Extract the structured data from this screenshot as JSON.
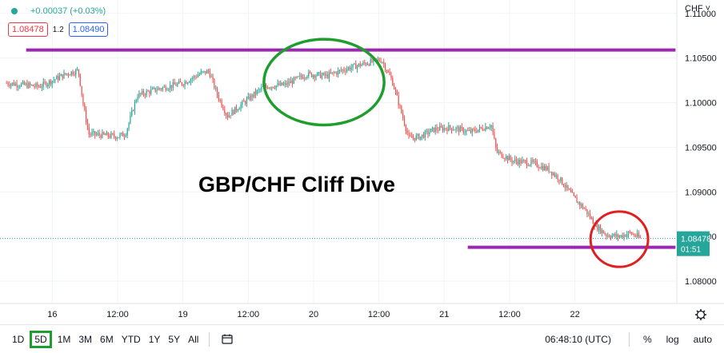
{
  "legend": {
    "change": "+0.00037 (+0.03%)",
    "sell_price": "1.08478",
    "spread": "1.2",
    "buy_price": "1.08490"
  },
  "currency_label": "CHF ˅",
  "annotation_title": "GBP/CHF Cliff Dive",
  "price_label": {
    "value": "1.08478",
    "countdown": "01:51"
  },
  "colors": {
    "up": "#26a69a",
    "down": "#ef5350",
    "resistance_line": "#9c27b0",
    "ellipse": "#1f9d2f",
    "circle": "#e02020",
    "price_badge": "#26a69a"
  },
  "chart_data": {
    "type": "candlestick",
    "ylim": [
      1.0775,
      1.1115
    ],
    "y_ticks": [
      1.08,
      1.085,
      1.09,
      1.095,
      1.1,
      1.105,
      1.11
    ],
    "y_tick_labels": [
      "1.08000",
      "1.08500",
      "1.09000",
      "1.09500",
      "1.10000",
      "1.10500",
      "1.11000"
    ],
    "x_ticks": [
      {
        "label": "16",
        "t": 0.0
      },
      {
        "label": "12:00",
        "t": 0.5
      },
      {
        "label": "19",
        "t": 1.0
      },
      {
        "label": "12:00",
        "t": 1.5
      },
      {
        "label": "20",
        "t": 2.0
      },
      {
        "label": "12:00",
        "t": 2.5
      },
      {
        "label": "21",
        "t": 3.0
      },
      {
        "label": "12:00",
        "t": 3.5
      },
      {
        "label": "22",
        "t": 4.0
      }
    ],
    "horizontal_lines": [
      {
        "name": "resistance",
        "y": 1.1059,
        "t_start": -0.2,
        "t_end": 4.77
      },
      {
        "name": "support",
        "y": 1.0838,
        "t_start": 3.18,
        "t_end": 4.77
      }
    ],
    "ellipse": {
      "t_center": 2.08,
      "y_center": 1.1023,
      "t_radius": 0.46,
      "y_radius": 0.0048
    },
    "circle": {
      "t_center": 4.34,
      "y_center": 1.0847,
      "t_radius": 0.22,
      "y_radius": 0.0031
    },
    "current_price": 1.08478,
    "path": [
      [
        -0.35,
        1.1022
      ],
      [
        -0.1,
        1.1018
      ],
      [
        0.12,
        1.1033
      ],
      [
        0.2,
        1.1036
      ],
      [
        0.24,
        1.0995
      ],
      [
        0.28,
        1.0965
      ],
      [
        0.5,
        1.0962
      ],
      [
        0.56,
        1.0965
      ],
      [
        0.65,
        1.1008
      ],
      [
        0.8,
        1.1015
      ],
      [
        1.0,
        1.1022
      ],
      [
        1.14,
        1.1033
      ],
      [
        1.2,
        1.1035
      ],
      [
        1.26,
        1.101
      ],
      [
        1.34,
        1.0985
      ],
      [
        1.55,
        1.101
      ],
      [
        1.62,
        1.1018
      ],
      [
        1.78,
        1.102
      ],
      [
        1.95,
        1.1032
      ],
      [
        2.1,
        1.103
      ],
      [
        2.25,
        1.1038
      ],
      [
        2.42,
        1.1045
      ],
      [
        2.52,
        1.1048
      ],
      [
        2.6,
        1.1025
      ],
      [
        2.66,
        1.0995
      ],
      [
        2.73,
        1.096
      ],
      [
        2.82,
        1.0962
      ],
      [
        2.92,
        1.097
      ],
      [
        3.05,
        1.0972
      ],
      [
        3.2,
        1.0967
      ],
      [
        3.3,
        1.0972
      ],
      [
        3.36,
        1.0975
      ],
      [
        3.4,
        1.0945
      ],
      [
        3.52,
        1.0935
      ],
      [
        3.68,
        1.0932
      ],
      [
        3.8,
        1.0925
      ],
      [
        3.88,
        1.0915
      ],
      [
        4.0,
        1.0892
      ],
      [
        4.08,
        1.088
      ],
      [
        4.16,
        1.0862
      ],
      [
        4.24,
        1.0852
      ],
      [
        4.34,
        1.085
      ],
      [
        4.42,
        1.0854
      ],
      [
        4.48,
        1.085
      ],
      [
        4.5,
        1.08478
      ]
    ]
  },
  "toolbar": {
    "timeframes": [
      "1D",
      "5D",
      "1M",
      "3M",
      "6M",
      "YTD",
      "1Y",
      "5Y",
      "All"
    ],
    "active": "5D",
    "clock": "06:48:10 (UTC)",
    "percent": "%",
    "log": "log",
    "auto": "auto"
  }
}
